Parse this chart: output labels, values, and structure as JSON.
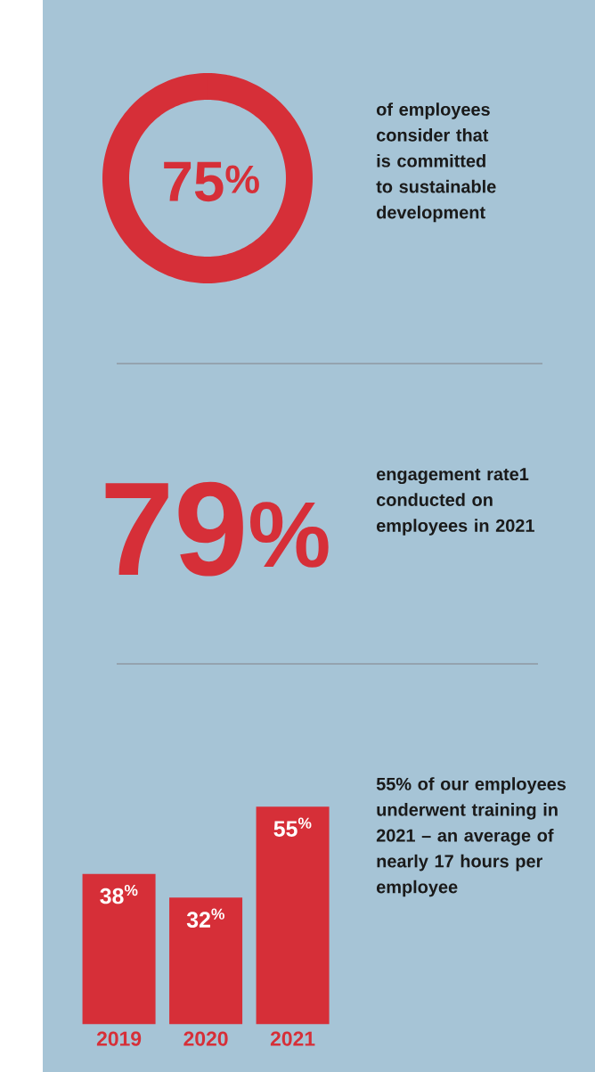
{
  "chart_data": [
    {
      "type": "donut",
      "categories": [
        null,
        null
      ],
      "values": [
        75,
        25
      ],
      "colors": [
        "#d62f38",
        "#d62f38"
      ],
      "value_labels": [
        "75$^{%}$",
        null
      ],
      "annotations": [
        "of employees consider that is committed to sustainable development"
      ]
    },
    {
      "type": "other",
      "annotations": [
        "79$^{%}$",
        "engagement rate1 conducted on employees in 2021"
      ]
    },
    {
      "type": "bar",
      "categories": [
        "2019",
        "2020",
        "2021"
      ],
      "values": [
        38,
        32,
        55
      ],
      "color": "#d62f38",
      "value_labels": [
        "38$^{%}$",
        "32$^{%}$",
        "55$^{%}$"
      ],
      "annotations": [
        "55% of our employees underwent training in 2021 – an average of nearly 17 hours per employee"
      ]
    }
  ]
}
